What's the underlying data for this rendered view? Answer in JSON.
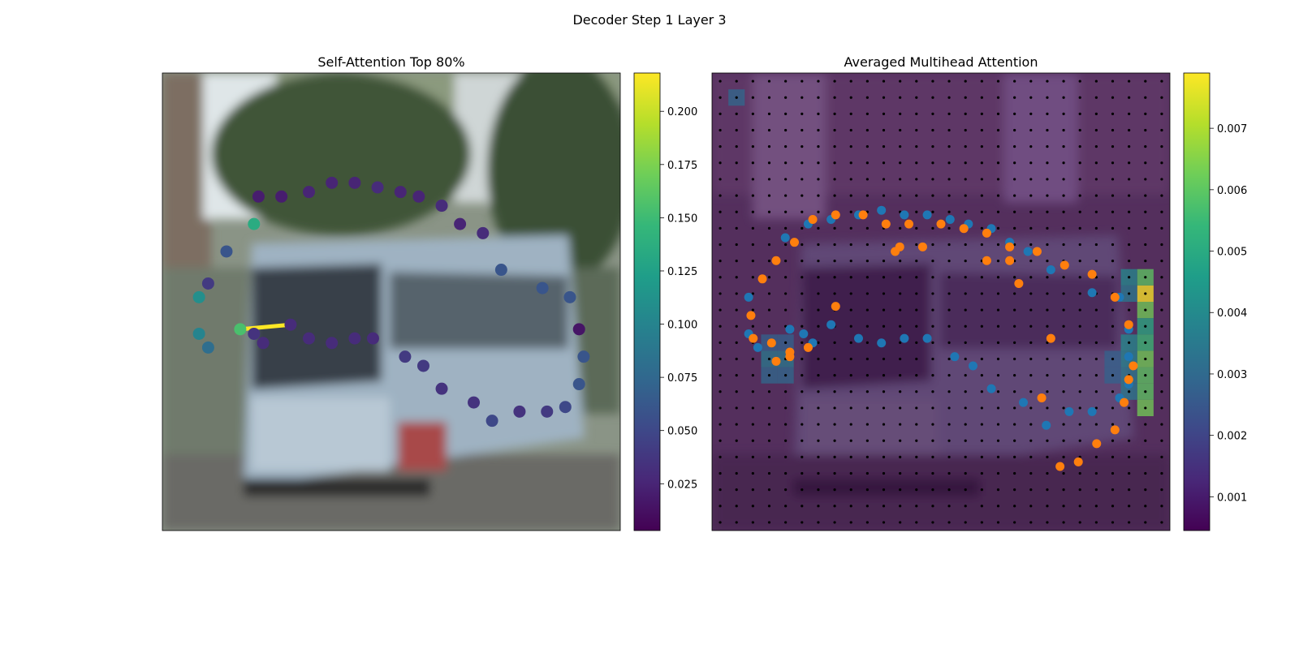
{
  "figure": {
    "title": "Decoder Step 1 Layer 3"
  },
  "colors": {
    "viridis": [
      "#440154",
      "#482878",
      "#3e4989",
      "#31688e",
      "#26828e",
      "#1f9e89",
      "#35b779",
      "#6ece58",
      "#b5de2b",
      "#fde725"
    ],
    "pred_points": "#1f77b4",
    "gt_points": "#ff7f0e",
    "attention_edge": "#fde725",
    "grid_dots": "#000000"
  },
  "chart_data": [
    {
      "type": "scatter",
      "title": "Self-Attention Top 80%",
      "background": "blurred street photo of a light-blue tram",
      "colorbar": {
        "range": [
          0.003,
          0.218
        ],
        "ticks": [
          "0.025",
          "0.050",
          "0.075",
          "0.100",
          "0.125",
          "0.150",
          "0.175",
          "0.200"
        ],
        "tick_values": [
          0.025,
          0.05,
          0.075,
          0.1,
          0.125,
          0.15,
          0.175,
          0.2
        ]
      },
      "edge": {
        "from": [
          0.17,
          0.56
        ],
        "to": [
          0.28,
          0.55
        ],
        "weight": 0.218
      },
      "points": [
        {
          "x": 0.2,
          "y": 0.33,
          "v": 0.135
        },
        {
          "x": 0.14,
          "y": 0.39,
          "v": 0.06
        },
        {
          "x": 0.1,
          "y": 0.46,
          "v": 0.04
        },
        {
          "x": 0.08,
          "y": 0.49,
          "v": 0.11
        },
        {
          "x": 0.08,
          "y": 0.57,
          "v": 0.1
        },
        {
          "x": 0.1,
          "y": 0.6,
          "v": 0.08
        },
        {
          "x": 0.17,
          "y": 0.56,
          "v": 0.155
        },
        {
          "x": 0.2,
          "y": 0.57,
          "v": 0.035
        },
        {
          "x": 0.22,
          "y": 0.59,
          "v": 0.03
        },
        {
          "x": 0.28,
          "y": 0.55,
          "v": 0.03
        },
        {
          "x": 0.32,
          "y": 0.58,
          "v": 0.03
        },
        {
          "x": 0.37,
          "y": 0.59,
          "v": 0.03
        },
        {
          "x": 0.42,
          "y": 0.58,
          "v": 0.03
        },
        {
          "x": 0.46,
          "y": 0.58,
          "v": 0.03
        },
        {
          "x": 0.21,
          "y": 0.27,
          "v": 0.02
        },
        {
          "x": 0.26,
          "y": 0.27,
          "v": 0.02
        },
        {
          "x": 0.32,
          "y": 0.26,
          "v": 0.025
        },
        {
          "x": 0.37,
          "y": 0.24,
          "v": 0.025
        },
        {
          "x": 0.42,
          "y": 0.24,
          "v": 0.025
        },
        {
          "x": 0.47,
          "y": 0.25,
          "v": 0.03
        },
        {
          "x": 0.52,
          "y": 0.26,
          "v": 0.025
        },
        {
          "x": 0.56,
          "y": 0.27,
          "v": 0.025
        },
        {
          "x": 0.61,
          "y": 0.29,
          "v": 0.03
        },
        {
          "x": 0.65,
          "y": 0.33,
          "v": 0.025
        },
        {
          "x": 0.7,
          "y": 0.35,
          "v": 0.03
        },
        {
          "x": 0.74,
          "y": 0.43,
          "v": 0.06
        },
        {
          "x": 0.83,
          "y": 0.47,
          "v": 0.06
        },
        {
          "x": 0.89,
          "y": 0.49,
          "v": 0.06
        },
        {
          "x": 0.91,
          "y": 0.56,
          "v": 0.015
        },
        {
          "x": 0.92,
          "y": 0.62,
          "v": 0.06
        },
        {
          "x": 0.91,
          "y": 0.68,
          "v": 0.06
        },
        {
          "x": 0.88,
          "y": 0.73,
          "v": 0.05
        },
        {
          "x": 0.84,
          "y": 0.74,
          "v": 0.04
        },
        {
          "x": 0.78,
          "y": 0.74,
          "v": 0.035
        },
        {
          "x": 0.72,
          "y": 0.76,
          "v": 0.05
        },
        {
          "x": 0.68,
          "y": 0.72,
          "v": 0.035
        },
        {
          "x": 0.61,
          "y": 0.69,
          "v": 0.035
        },
        {
          "x": 0.57,
          "y": 0.64,
          "v": 0.04
        },
        {
          "x": 0.53,
          "y": 0.62,
          "v": 0.04
        }
      ]
    },
    {
      "type": "heatmap",
      "title": "Averaged Multihead Attention",
      "background": "same tram photo under a dark viridis attention overlay",
      "colorbar": {
        "range": [
          0.00045,
          0.0079
        ],
        "ticks": [
          "0.001",
          "0.002",
          "0.003",
          "0.004",
          "0.005",
          "0.006",
          "0.007"
        ],
        "tick_values": [
          0.001,
          0.002,
          0.003,
          0.004,
          0.005,
          0.006,
          0.007
        ]
      },
      "grid": {
        "cols": 28,
        "rows": 28
      },
      "hot_cells": [
        {
          "c": 26,
          "r": 13,
          "v": 0.0079
        },
        {
          "c": 26,
          "r": 12,
          "v": 0.006
        },
        {
          "c": 26,
          "r": 14,
          "v": 0.0063
        },
        {
          "c": 26,
          "r": 15,
          "v": 0.005
        },
        {
          "c": 26,
          "r": 16,
          "v": 0.0055
        },
        {
          "c": 26,
          "r": 17,
          "v": 0.0063
        },
        {
          "c": 26,
          "r": 18,
          "v": 0.006
        },
        {
          "c": 26,
          "r": 19,
          "v": 0.006
        },
        {
          "c": 26,
          "r": 20,
          "v": 0.0063
        },
        {
          "c": 25,
          "r": 12,
          "v": 0.004
        },
        {
          "c": 25,
          "r": 13,
          "v": 0.0035
        },
        {
          "c": 25,
          "r": 16,
          "v": 0.004
        },
        {
          "c": 25,
          "r": 17,
          "v": 0.0038
        },
        {
          "c": 25,
          "r": 18,
          "v": 0.0035
        },
        {
          "c": 25,
          "r": 19,
          "v": 0.0035
        },
        {
          "c": 24,
          "r": 17,
          "v": 0.0028
        },
        {
          "c": 24,
          "r": 18,
          "v": 0.0028
        },
        {
          "c": 1,
          "r": 1,
          "v": 0.003
        },
        {
          "c": 3,
          "r": 17,
          "v": 0.0035
        },
        {
          "c": 4,
          "r": 17,
          "v": 0.0035
        },
        {
          "c": 3,
          "r": 18,
          "v": 0.003
        },
        {
          "c": 4,
          "r": 18,
          "v": 0.003
        },
        {
          "c": 3,
          "r": 16,
          "v": 0.0028
        },
        {
          "c": 4,
          "r": 16,
          "v": 0.0028
        }
      ],
      "series": [
        {
          "color": "#1f77b4",
          "points": [
            {
              "x": 0.16,
              "y": 0.36
            },
            {
              "x": 0.08,
              "y": 0.49
            },
            {
              "x": 0.08,
              "y": 0.57
            },
            {
              "x": 0.1,
              "y": 0.6
            },
            {
              "x": 0.17,
              "y": 0.56
            },
            {
              "x": 0.2,
              "y": 0.57
            },
            {
              "x": 0.22,
              "y": 0.59
            },
            {
              "x": 0.26,
              "y": 0.55
            },
            {
              "x": 0.32,
              "y": 0.58
            },
            {
              "x": 0.37,
              "y": 0.59
            },
            {
              "x": 0.42,
              "y": 0.58
            },
            {
              "x": 0.47,
              "y": 0.58
            },
            {
              "x": 0.21,
              "y": 0.33
            },
            {
              "x": 0.26,
              "y": 0.32
            },
            {
              "x": 0.32,
              "y": 0.31
            },
            {
              "x": 0.37,
              "y": 0.3
            },
            {
              "x": 0.42,
              "y": 0.31
            },
            {
              "x": 0.47,
              "y": 0.31
            },
            {
              "x": 0.52,
              "y": 0.32
            },
            {
              "x": 0.56,
              "y": 0.33
            },
            {
              "x": 0.61,
              "y": 0.34
            },
            {
              "x": 0.65,
              "y": 0.37
            },
            {
              "x": 0.69,
              "y": 0.39
            },
            {
              "x": 0.74,
              "y": 0.43
            },
            {
              "x": 0.83,
              "y": 0.48
            },
            {
              "x": 0.89,
              "y": 0.49
            },
            {
              "x": 0.91,
              "y": 0.56
            },
            {
              "x": 0.91,
              "y": 0.62
            },
            {
              "x": 0.91,
              "y": 0.68
            },
            {
              "x": 0.89,
              "y": 0.71
            },
            {
              "x": 0.83,
              "y": 0.74
            },
            {
              "x": 0.78,
              "y": 0.74
            },
            {
              "x": 0.73,
              "y": 0.77
            },
            {
              "x": 0.68,
              "y": 0.72
            },
            {
              "x": 0.61,
              "y": 0.69
            },
            {
              "x": 0.57,
              "y": 0.64
            },
            {
              "x": 0.53,
              "y": 0.62
            }
          ]
        },
        {
          "color": "#ff7f0e",
          "points": [
            {
              "x": 0.18,
              "y": 0.37
            },
            {
              "x": 0.14,
              "y": 0.41
            },
            {
              "x": 0.11,
              "y": 0.45
            },
            {
              "x": 0.085,
              "y": 0.53
            },
            {
              "x": 0.09,
              "y": 0.58
            },
            {
              "x": 0.13,
              "y": 0.59
            },
            {
              "x": 0.17,
              "y": 0.61
            },
            {
              "x": 0.14,
              "y": 0.63
            },
            {
              "x": 0.17,
              "y": 0.62
            },
            {
              "x": 0.21,
              "y": 0.6
            },
            {
              "x": 0.27,
              "y": 0.51
            },
            {
              "x": 0.22,
              "y": 0.32
            },
            {
              "x": 0.27,
              "y": 0.31
            },
            {
              "x": 0.33,
              "y": 0.31
            },
            {
              "x": 0.38,
              "y": 0.33
            },
            {
              "x": 0.43,
              "y": 0.33
            },
            {
              "x": 0.5,
              "y": 0.33
            },
            {
              "x": 0.55,
              "y": 0.34
            },
            {
              "x": 0.6,
              "y": 0.35
            },
            {
              "x": 0.65,
              "y": 0.38
            },
            {
              "x": 0.4,
              "y": 0.39
            },
            {
              "x": 0.41,
              "y": 0.38
            },
            {
              "x": 0.46,
              "y": 0.38
            },
            {
              "x": 0.6,
              "y": 0.41
            },
            {
              "x": 0.65,
              "y": 0.41
            },
            {
              "x": 0.67,
              "y": 0.46
            },
            {
              "x": 0.71,
              "y": 0.39
            },
            {
              "x": 0.77,
              "y": 0.42
            },
            {
              "x": 0.83,
              "y": 0.44
            },
            {
              "x": 0.88,
              "y": 0.49
            },
            {
              "x": 0.91,
              "y": 0.55
            },
            {
              "x": 0.92,
              "y": 0.64
            },
            {
              "x": 0.91,
              "y": 0.67
            },
            {
              "x": 0.9,
              "y": 0.72
            },
            {
              "x": 0.88,
              "y": 0.78
            },
            {
              "x": 0.84,
              "y": 0.81
            },
            {
              "x": 0.8,
              "y": 0.85
            },
            {
              "x": 0.76,
              "y": 0.86
            },
            {
              "x": 0.72,
              "y": 0.71
            },
            {
              "x": 0.74,
              "y": 0.58
            }
          ]
        }
      ]
    }
  ]
}
